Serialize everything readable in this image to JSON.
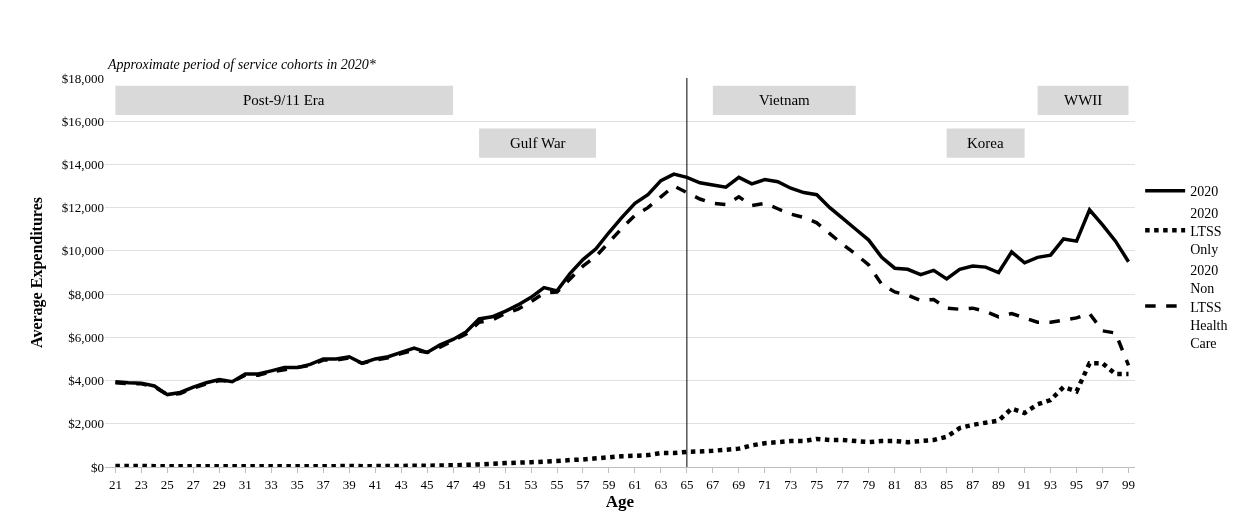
{
  "chart_data": {
    "type": "line",
    "xlabel": "Age",
    "ylabel": "Average Expenditures",
    "annotations": [
      "Approximate period of service cohorts in 2020*"
    ],
    "x": [
      21,
      22,
      23,
      24,
      25,
      26,
      27,
      28,
      29,
      30,
      31,
      32,
      33,
      34,
      35,
      36,
      37,
      38,
      39,
      40,
      41,
      42,
      43,
      44,
      45,
      46,
      47,
      48,
      49,
      50,
      51,
      52,
      53,
      54,
      55,
      56,
      57,
      58,
      59,
      60,
      61,
      62,
      63,
      64,
      65,
      66,
      67,
      68,
      69,
      70,
      71,
      72,
      73,
      74,
      75,
      76,
      77,
      78,
      79,
      80,
      81,
      82,
      83,
      84,
      85,
      86,
      87,
      88,
      89,
      90,
      91,
      92,
      93,
      94,
      95,
      96,
      97,
      98,
      99
    ],
    "series": [
      {
        "name": "2020",
        "color": "#000000",
        "line_style": "solid",
        "values": [
          3950,
          3900,
          3880,
          3750,
          3350,
          3450,
          3700,
          3900,
          4050,
          3950,
          4300,
          4300,
          4450,
          4600,
          4600,
          4750,
          5000,
          5000,
          5100,
          4800,
          5000,
          5100,
          5300,
          5500,
          5300,
          5650,
          5900,
          6250,
          6850,
          6950,
          7200,
          7500,
          7850,
          8300,
          8150,
          8950,
          9600,
          10100,
          10850,
          11550,
          12200,
          12600,
          13250,
          13550,
          13400,
          13150,
          13050,
          12950,
          13400,
          13100,
          13300,
          13200,
          12900,
          12700,
          12600,
          12000,
          11500,
          11000,
          10500,
          9700,
          9200,
          9150,
          8900,
          9100,
          8700,
          9150,
          9300,
          9250,
          9000,
          9950,
          9450,
          9700,
          9800,
          10550,
          10450,
          11900,
          11200,
          10450,
          9500
        ]
      },
      {
        "name": "2020 LTSS Only",
        "color": "#000000",
        "line_style": "dotted",
        "values": [
          50,
          50,
          50,
          40,
          30,
          30,
          40,
          40,
          40,
          40,
          40,
          40,
          40,
          40,
          40,
          40,
          40,
          40,
          50,
          40,
          40,
          50,
          50,
          60,
          60,
          70,
          80,
          100,
          120,
          150,
          180,
          200,
          220,
          250,
          280,
          320,
          350,
          400,
          450,
          500,
          520,
          550,
          650,
          650,
          700,
          720,
          750,
          800,
          850,
          1000,
          1100,
          1150,
          1200,
          1200,
          1300,
          1250,
          1250,
          1200,
          1150,
          1200,
          1200,
          1150,
          1200,
          1250,
          1400,
          1800,
          1950,
          2050,
          2150,
          2700,
          2500,
          2900,
          3100,
          3700,
          3500,
          4800,
          4800,
          4300,
          4300
        ]
      },
      {
        "name": "2020 Non LTSS Health Care",
        "color": "#000000",
        "line_style": "dashed",
        "values": [
          3900,
          3850,
          3850,
          3700,
          3350,
          3400,
          3650,
          3850,
          4000,
          3950,
          4250,
          4250,
          4400,
          4500,
          4600,
          4700,
          4950,
          4950,
          5050,
          4800,
          4950,
          5050,
          5250,
          5400,
          5300,
          5550,
          5850,
          6150,
          6700,
          6800,
          7100,
          7300,
          7650,
          8050,
          8100,
          8700,
          9300,
          9750,
          10400,
          11050,
          11650,
          12000,
          12500,
          13000,
          12700,
          12400,
          12200,
          12150,
          12500,
          12100,
          12200,
          11950,
          11700,
          11550,
          11300,
          10800,
          10300,
          9850,
          9350,
          8450,
          8100,
          7950,
          7700,
          7750,
          7350,
          7300,
          7350,
          7200,
          6950,
          7100,
          6900,
          6700,
          6700,
          6800,
          6900,
          7100,
          6300,
          6200,
          4700
        ]
      }
    ],
    "xlim": [
      20.2,
      99.5
    ],
    "xticks": [
      21,
      23,
      25,
      27,
      29,
      31,
      33,
      35,
      37,
      39,
      41,
      43,
      45,
      47,
      49,
      51,
      53,
      55,
      57,
      59,
      61,
      63,
      65,
      67,
      69,
      71,
      73,
      75,
      77,
      79,
      81,
      83,
      85,
      87,
      89,
      91,
      93,
      95,
      97,
      99
    ],
    "ylim": [
      0,
      18000
    ],
    "yticks": [
      {
        "value": 0,
        "label": "$0"
      },
      {
        "value": 2000,
        "label": "$2,000"
      },
      {
        "value": 4000,
        "label": "$4,000"
      },
      {
        "value": 6000,
        "label": "$6,000"
      },
      {
        "value": 8000,
        "label": "$8,000"
      },
      {
        "value": 10000,
        "label": "$10,000"
      },
      {
        "value": 12000,
        "label": "$12,000"
      },
      {
        "value": 14000,
        "label": "$14,000"
      },
      {
        "value": 16000,
        "label": "$16,000"
      },
      {
        "value": 18000,
        "label": "$18,000"
      }
    ],
    "grid": "y",
    "legend": "right",
    "marker": "none",
    "ref_lines": [
      {
        "axis": "x",
        "value": 65,
        "color": "#000000"
      }
    ],
    "bands": [
      {
        "axis": "x",
        "from": 21,
        "to": 47,
        "label": "Post-9/11 Era",
        "color": "#d9d9d9"
      },
      {
        "axis": "x",
        "from": 49,
        "to": 58,
        "label": "Gulf War",
        "color": "#d9d9d9"
      },
      {
        "axis": "x",
        "from": 67,
        "to": 78,
        "label": "Vietnam",
        "color": "#d9d9d9"
      },
      {
        "axis": "x",
        "from": 85,
        "to": 91,
        "label": "Korea",
        "color": "#d9d9d9"
      },
      {
        "axis": "x",
        "from": 92,
        "to": 99,
        "label": "WWII",
        "color": "#d9d9d9"
      }
    ]
  }
}
